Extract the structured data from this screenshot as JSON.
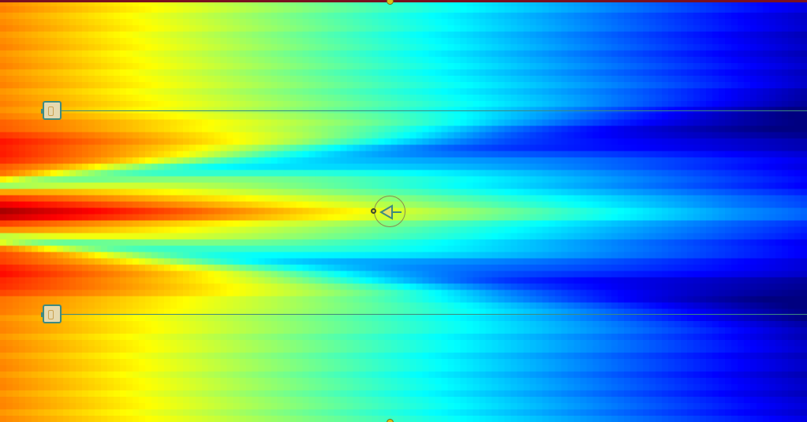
{
  "view": {
    "type": "wave-intensity-field",
    "colormap": "jet",
    "colors": {
      "top_border": "#7a1020",
      "barrier_line": "#3e8a80",
      "handle_fill": "#e6d9b0",
      "edge_marker": "#d9c21a"
    }
  },
  "controls": {
    "barriers": [
      {
        "id": "upper"
      },
      {
        "id": "lower"
      }
    ],
    "probe": {
      "icon": "arrow-left-icon"
    }
  }
}
